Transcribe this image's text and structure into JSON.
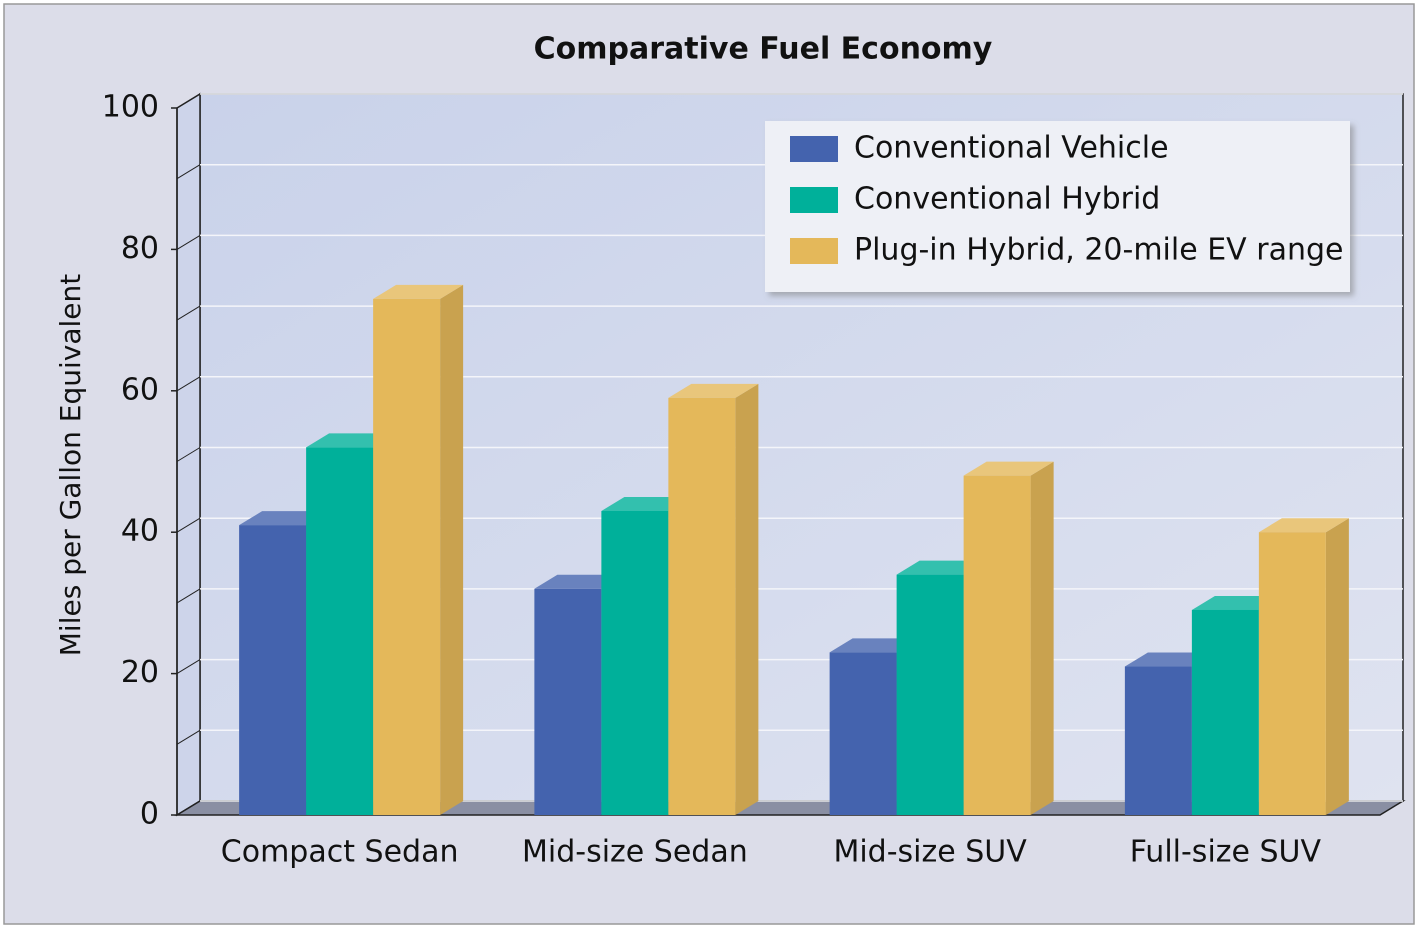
{
  "chart_data": {
    "type": "bar3d",
    "title": "Comparative Fuel Economy",
    "y_label": "Miles per Gallon Equivalent",
    "categories": [
      "Compact Sedan",
      "Mid-size Sedan",
      "Mid-size SUV",
      "Full-size SUV"
    ],
    "series": [
      {
        "name": "Conventional Vehicle",
        "color": "#4463ae",
        "values": [
          41,
          32,
          23,
          21
        ]
      },
      {
        "name": "Conventional Hybrid",
        "color": "#00b09a",
        "values": [
          52,
          43,
          34,
          29
        ]
      },
      {
        "name": "Plug-in Hybrid, 20-mile EV range",
        "color": "#e4b85a",
        "values": [
          73,
          59,
          48,
          40
        ]
      }
    ],
    "ylim": [
      0,
      100
    ],
    "yticks": [
      0,
      20,
      40,
      60,
      80,
      100
    ],
    "minor_yticks": [
      10,
      30,
      50,
      70,
      90
    ],
    "grid": true,
    "legend": "upper right"
  }
}
